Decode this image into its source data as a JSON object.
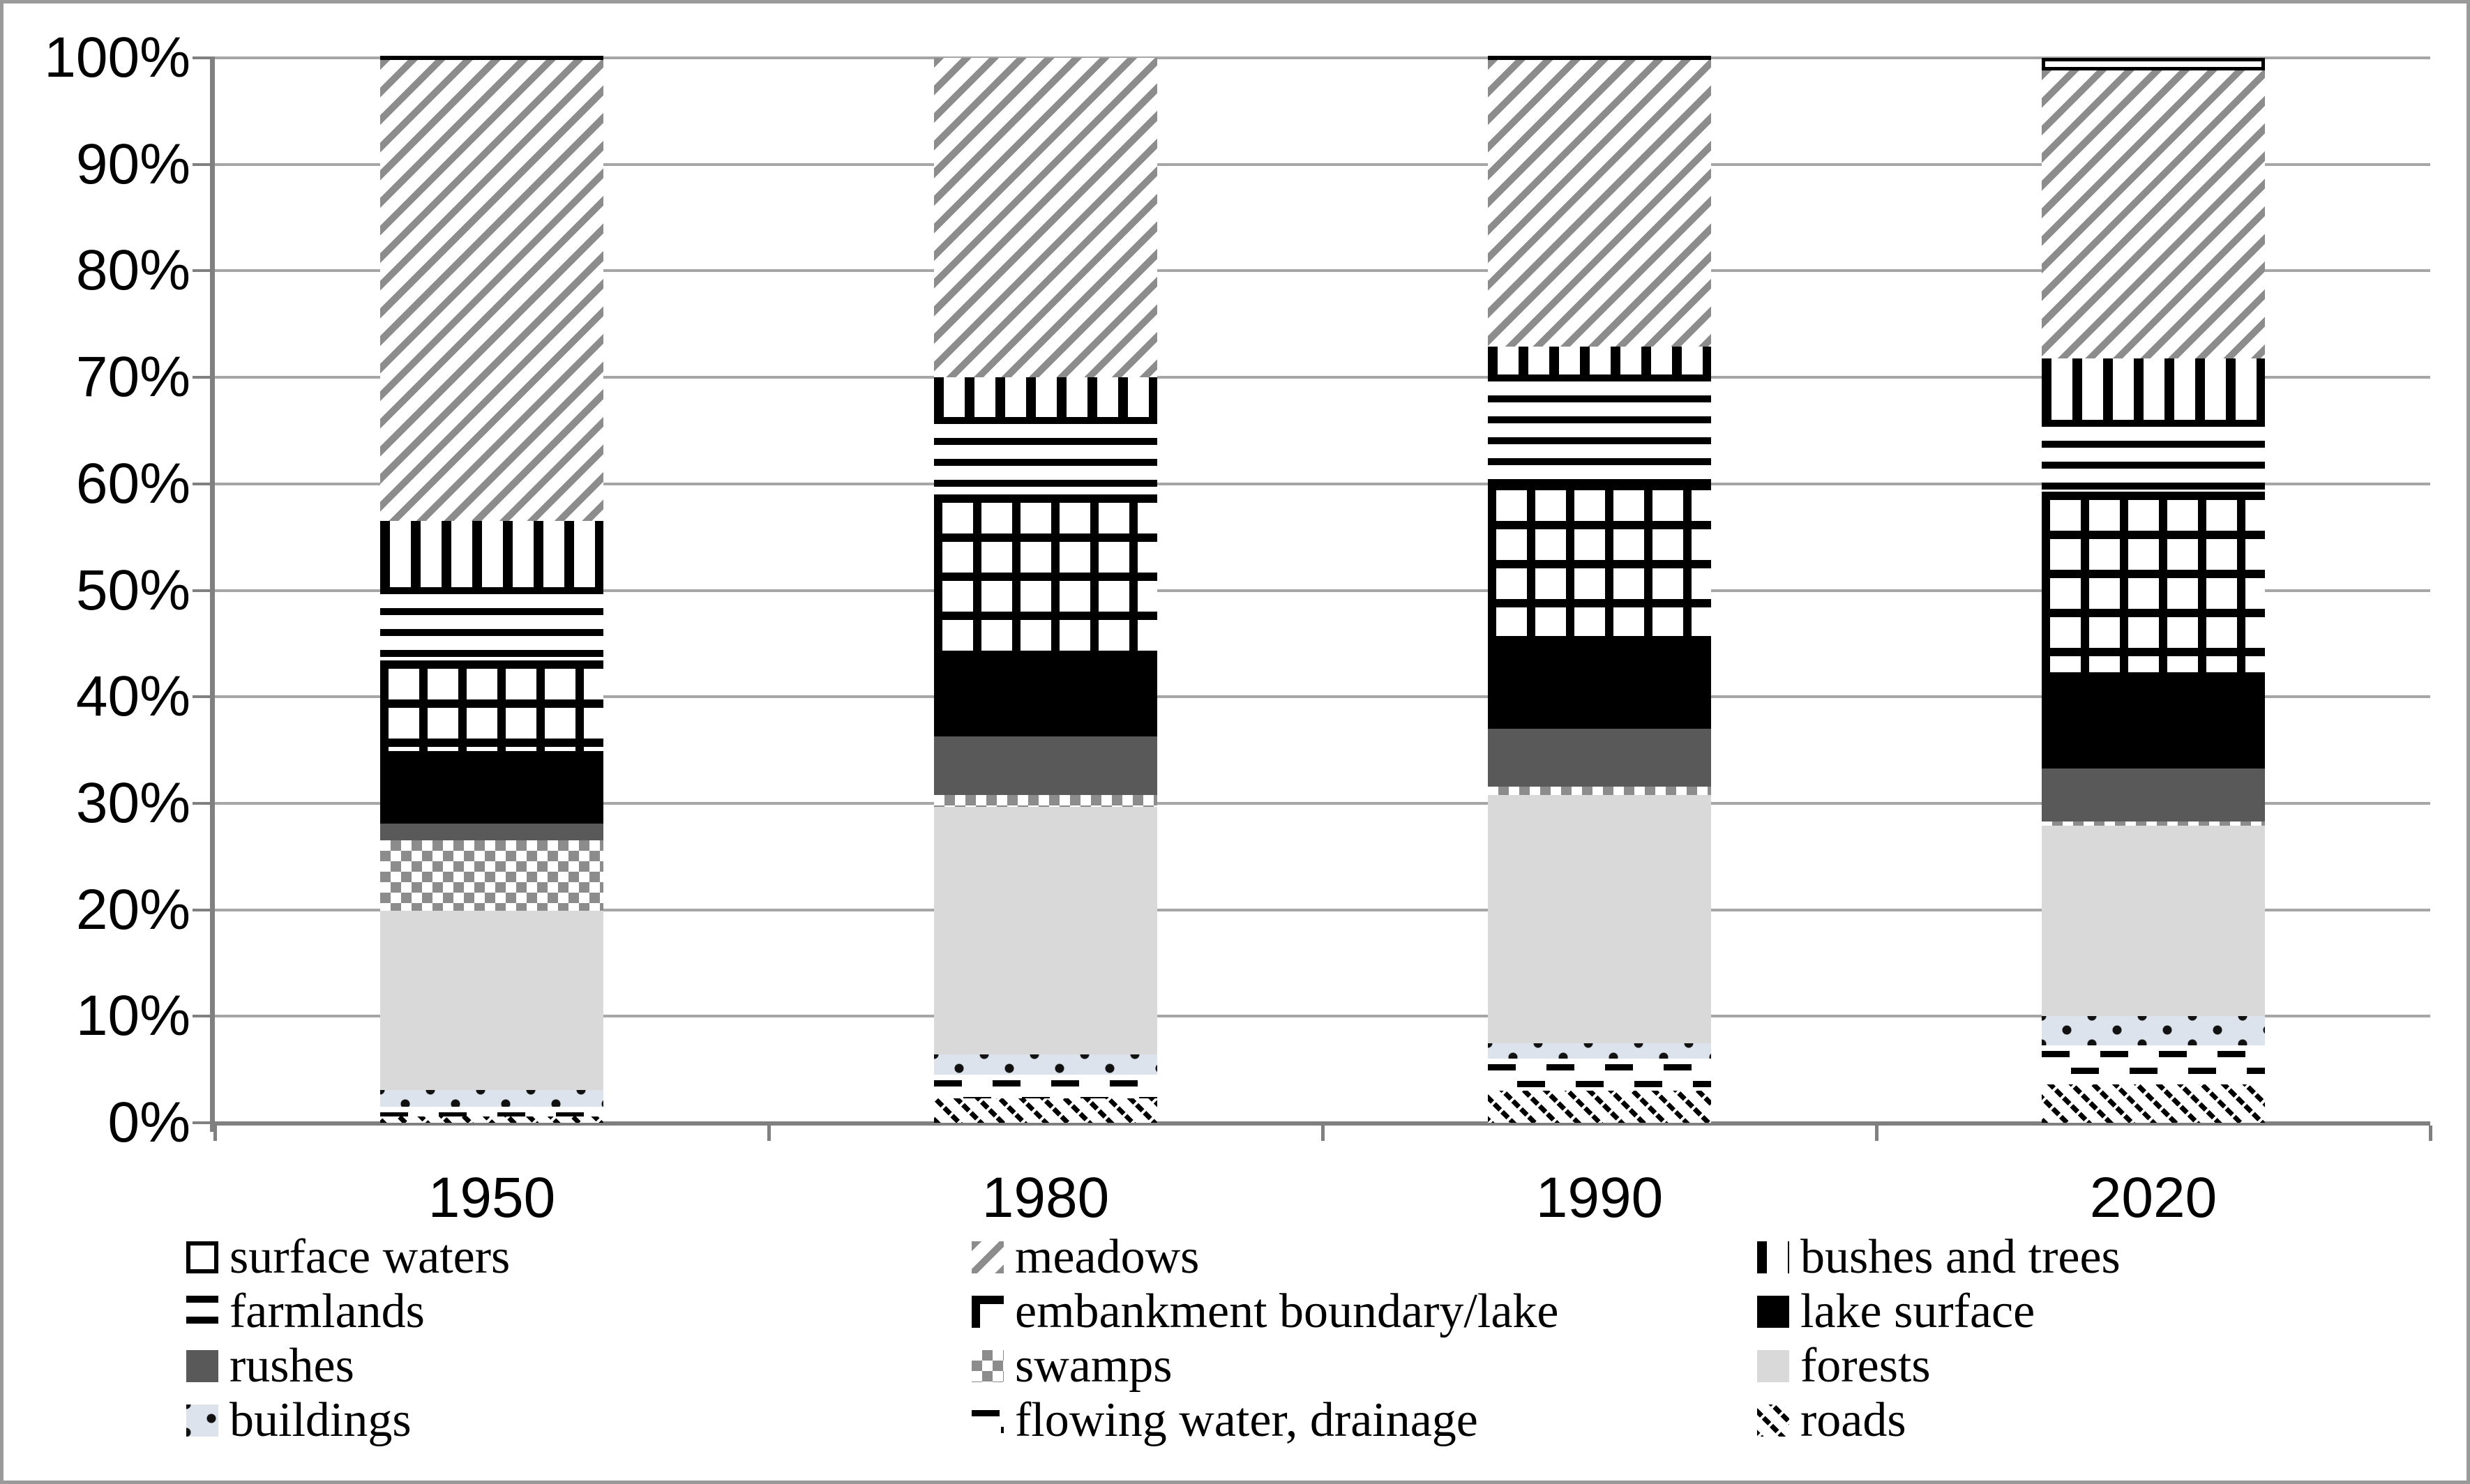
{
  "figure": {
    "background": "#ffffff",
    "border_color": "#9a9a9a"
  },
  "axes": {
    "grid_color": "#a6a6a6",
    "axis_color": "#808080",
    "y_ticks": [
      "100%",
      "90%",
      "80%",
      "70%",
      "60%",
      "50%",
      "40%",
      "30%",
      "20%",
      "10%",
      "0%"
    ],
    "x_ticks": [
      "1950",
      "1980",
      "1990",
      "2020"
    ]
  },
  "chart_data": {
    "type": "bar",
    "stacked": true,
    "percent_stacked": true,
    "title": "",
    "xlabel": "",
    "ylabel": "",
    "ylim": [
      0,
      100
    ],
    "ytick_step": 10,
    "grid": "horizontal",
    "legend_position": "bottom",
    "categories": [
      "1950",
      "1980",
      "1990",
      "2020"
    ],
    "series_note": "listed bottom-to-top of the stack; values are percent of total",
    "series": [
      {
        "key": "roads",
        "name": "roads",
        "values": [
          0.6,
          2.3,
          3.0,
          3.6
        ]
      },
      {
        "key": "flowing",
        "name": "flowing water, drainage",
        "values": [
          0.9,
          2.2,
          3.0,
          3.7
        ]
      },
      {
        "key": "buildings",
        "name": "buildings",
        "values": [
          1.6,
          1.9,
          1.5,
          2.7
        ]
      },
      {
        "key": "forests",
        "name": "forests",
        "values": [
          16.8,
          23.3,
          23.3,
          17.9
        ]
      },
      {
        "key": "swamps",
        "name": "swamps",
        "values": [
          6.6,
          1.1,
          0.8,
          0.4
        ]
      },
      {
        "key": "rushes",
        "name": "rushes",
        "values": [
          1.6,
          5.5,
          5.4,
          5.0
        ]
      },
      {
        "key": "lake",
        "name": "lake surface",
        "values": [
          6.8,
          7.5,
          8.7,
          9.0
        ]
      },
      {
        "key": "embankment",
        "name": "embankment boundary/lake",
        "values": [
          8.5,
          15.2,
          14.5,
          17.0
        ]
      },
      {
        "key": "farmlands",
        "name": "farmlands",
        "values": [
          6.9,
          7.3,
          10.1,
          6.7
        ]
      },
      {
        "key": "bushes",
        "name": "bushes and trees",
        "values": [
          6.2,
          3.7,
          2.6,
          5.8
        ]
      },
      {
        "key": "meadows",
        "name": "meadows",
        "values": [
          43.3,
          30.0,
          26.9,
          27.0
        ]
      },
      {
        "key": "surface",
        "name": "surface waters",
        "values": [
          0.2,
          0.0,
          0.2,
          1.2
        ]
      }
    ],
    "pattern_colors": {
      "hatch_gray": "#8c8c8c",
      "rushes_gray": "#595959",
      "forests_gray": "#d9d9d9",
      "buildings_blue_gray": "#dce3ed",
      "ink": "#000000"
    }
  },
  "legend": {
    "columns": [
      [
        {
          "label": "surface waters",
          "key": "surface"
        },
        {
          "label": "farmlands",
          "key": "farmlands"
        },
        {
          "label": "rushes",
          "key": "rushes"
        },
        {
          "label": "buildings",
          "key": "buildings"
        }
      ],
      [
        {
          "label": "meadows",
          "key": "meadows"
        },
        {
          "label": "embankment boundary/lake",
          "key": "embankment"
        },
        {
          "label": "swamps",
          "key": "swamps"
        },
        {
          "label": "flowing water, drainage",
          "key": "flowing"
        }
      ],
      [
        {
          "label": "bushes and trees",
          "key": "bushes"
        },
        {
          "label": "lake surface",
          "key": "lake"
        },
        {
          "label": "forests",
          "key": "forests"
        },
        {
          "label": "roads",
          "key": "roads"
        }
      ]
    ]
  }
}
